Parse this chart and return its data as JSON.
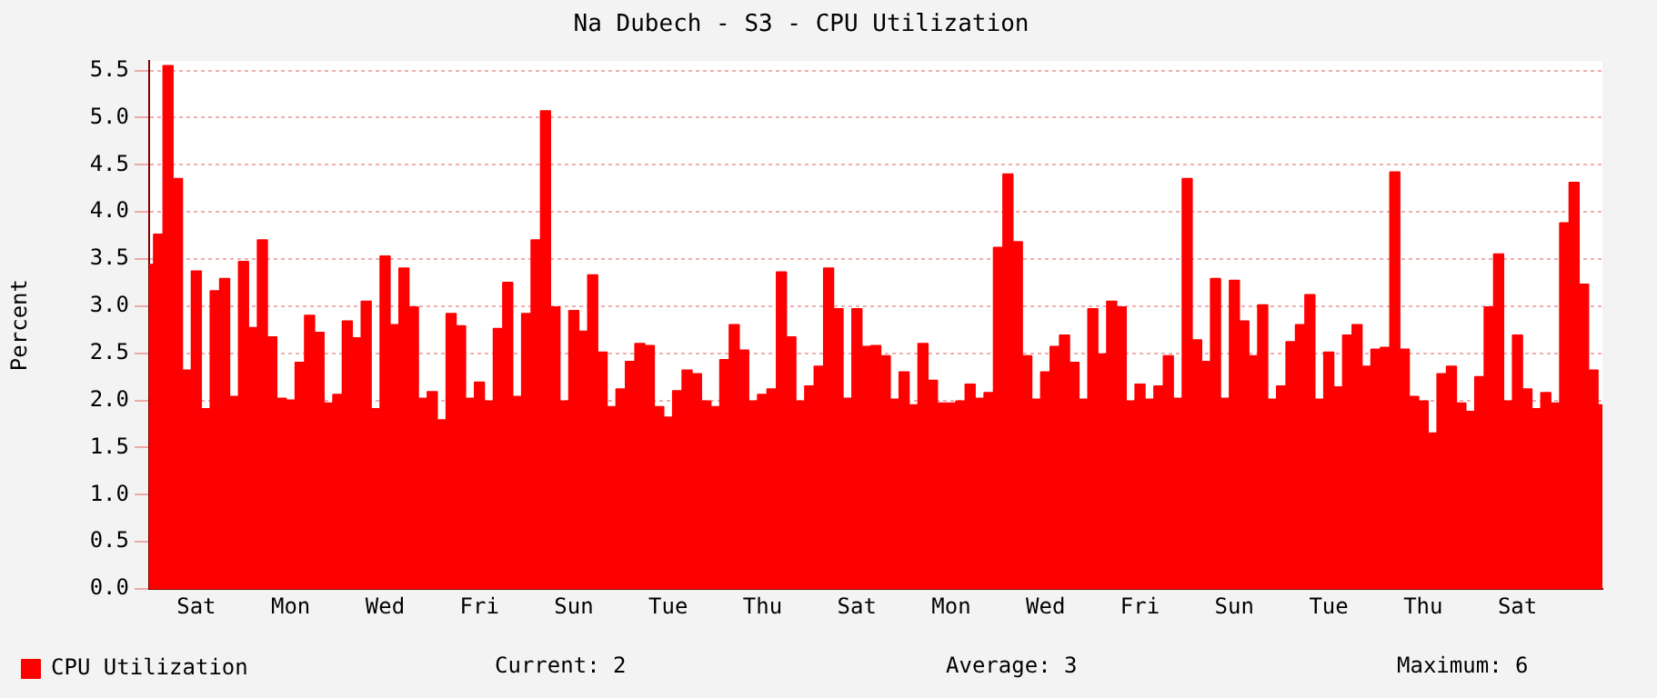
{
  "chart_data": {
    "type": "area",
    "title": "Na Dubech - S3 - CPU Utilization",
    "ylabel": "Percent",
    "categories": [
      null,
      null,
      null,
      null,
      null,
      "Sat",
      null,
      null,
      null,
      null,
      null,
      null,
      null,
      null,
      null,
      "Mon",
      null,
      null,
      null,
      null,
      null,
      null,
      null,
      null,
      null,
      "Wed",
      null,
      null,
      null,
      null,
      null,
      null,
      null,
      null,
      null,
      "Fri",
      null,
      null,
      null,
      null,
      null,
      null,
      null,
      null,
      null,
      "Sun",
      null,
      null,
      null,
      null,
      null,
      null,
      null,
      null,
      null,
      "Tue",
      null,
      null,
      null,
      null,
      null,
      null,
      null,
      null,
      null,
      "Thu",
      null,
      null,
      null,
      null,
      null,
      null,
      null,
      null,
      null,
      "Sat",
      null,
      null,
      null,
      null,
      null,
      null,
      null,
      null,
      null,
      "Mon",
      null,
      null,
      null,
      null,
      null,
      null,
      null,
      null,
      null,
      "Wed",
      null,
      null,
      null,
      null,
      null,
      null,
      null,
      null,
      null,
      "Fri",
      null,
      null,
      null,
      null,
      null,
      null,
      null,
      null,
      null,
      "Sun",
      null,
      null,
      null,
      null,
      null,
      null,
      null,
      null,
      null,
      "Tue",
      null,
      null,
      null,
      null,
      null,
      null,
      null,
      null,
      null,
      "Thu",
      null,
      null,
      null,
      null,
      null,
      null,
      null,
      null,
      null,
      "Sat",
      null,
      null,
      null,
      null,
      null,
      null,
      null,
      null,
      null
    ],
    "series": [
      {
        "name": "CPU Utilization",
        "color": "#ff0000",
        "values": [
          3.44,
          3.76,
          5.55,
          4.35,
          2.32,
          3.37,
          1.91,
          3.16,
          3.29,
          2.04,
          3.47,
          2.77,
          3.7,
          2.67,
          2.02,
          2.0,
          2.4,
          2.9,
          2.72,
          1.97,
          2.06,
          2.84,
          2.66,
          3.05,
          1.91,
          3.53,
          2.8,
          3.4,
          2.99,
          2.02,
          2.09,
          1.79,
          2.92,
          2.79,
          2.02,
          2.19,
          1.99,
          2.76,
          3.25,
          2.04,
          2.92,
          3.7,
          5.07,
          2.99,
          1.99,
          2.95,
          2.73,
          3.33,
          2.51,
          1.93,
          2.12,
          2.41,
          2.6,
          2.58,
          1.93,
          1.82,
          2.1,
          2.32,
          2.28,
          1.99,
          1.93,
          2.43,
          2.8,
          2.53,
          1.99,
          2.06,
          2.12,
          3.36,
          2.67,
          1.99,
          2.15,
          2.36,
          3.4,
          2.97,
          2.02,
          2.97,
          2.57,
          2.58,
          2.47,
          2.01,
          2.3,
          1.95,
          2.6,
          2.21,
          1.97,
          1.97,
          1.99,
          2.17,
          2.02,
          2.08,
          3.62,
          4.4,
          3.68,
          2.47,
          2.01,
          2.3,
          2.57,
          2.69,
          2.4,
          2.01,
          2.97,
          2.49,
          3.05,
          2.99,
          1.99,
          2.17,
          2.01,
          2.15,
          2.47,
          2.02,
          4.35,
          2.64,
          2.41,
          3.29,
          2.02,
          3.27,
          2.84,
          2.47,
          3.01,
          2.01,
          2.15,
          2.62,
          2.8,
          3.12,
          2.01,
          2.51,
          2.14,
          2.69,
          2.8,
          2.36,
          2.54,
          2.56,
          4.42,
          2.54,
          2.04,
          1.99,
          1.65,
          2.28,
          2.36,
          1.97,
          1.88,
          2.25,
          2.99,
          3.55,
          1.99,
          2.69,
          2.12,
          1.91,
          2.08,
          1.97,
          3.88,
          4.31,
          3.23,
          2.32,
          1.95
        ]
      }
    ],
    "ylim": [
      0,
      5.6
    ],
    "yticks": [
      {
        "value": 0,
        "label": "0.0"
      },
      0.5,
      {
        "value": 1,
        "label": "1.0"
      },
      1.5,
      {
        "value": 2,
        "label": "2.0"
      },
      2.5,
      {
        "value": 3,
        "label": "3.0"
      },
      3.5,
      {
        "value": 4,
        "label": "4.0"
      },
      4.5,
      {
        "value": 5,
        "label": "5.0"
      },
      5.5
    ],
    "grid": "y",
    "legend": "bottom left",
    "annotations": [
      "Current: 2",
      "Average: 3",
      "Maximum: 6"
    ]
  }
}
